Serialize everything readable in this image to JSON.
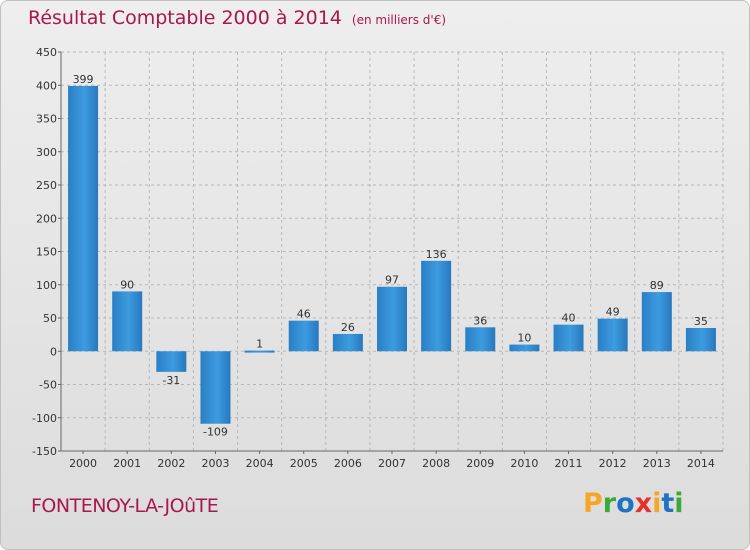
{
  "header": {
    "title": "Résultat Comptable 2000 à 2014",
    "units": "(en milliers d'€)"
  },
  "footer": {
    "place": "FONTENOY-LA-JOûTE",
    "logo_text": "Proxiti"
  },
  "colors": {
    "title": "#a8174e",
    "bar": "#2e8fd6",
    "logo": [
      "#f5a623",
      "#3aa935",
      "#1f73c4",
      "#e8302a",
      "#f5a623",
      "#1f73c4",
      "#3aa935"
    ]
  },
  "chart_data": {
    "type": "bar",
    "title": "Résultat Comptable 2000 à 2014",
    "subtitle": "(en milliers d'€)",
    "xlabel": "",
    "ylabel": "",
    "categories": [
      "2000",
      "2001",
      "2002",
      "2003",
      "2004",
      "2005",
      "2006",
      "2007",
      "2008",
      "2009",
      "2010",
      "2011",
      "2012",
      "2013",
      "2014"
    ],
    "values": [
      399,
      90,
      -31,
      -109,
      1,
      46,
      26,
      97,
      136,
      36,
      10,
      40,
      49,
      89,
      35
    ],
    "ylim": [
      -150,
      450
    ],
    "yticks": [
      -150,
      -100,
      -50,
      0,
      50,
      100,
      150,
      200,
      250,
      300,
      350,
      400,
      450
    ],
    "grid": true
  }
}
